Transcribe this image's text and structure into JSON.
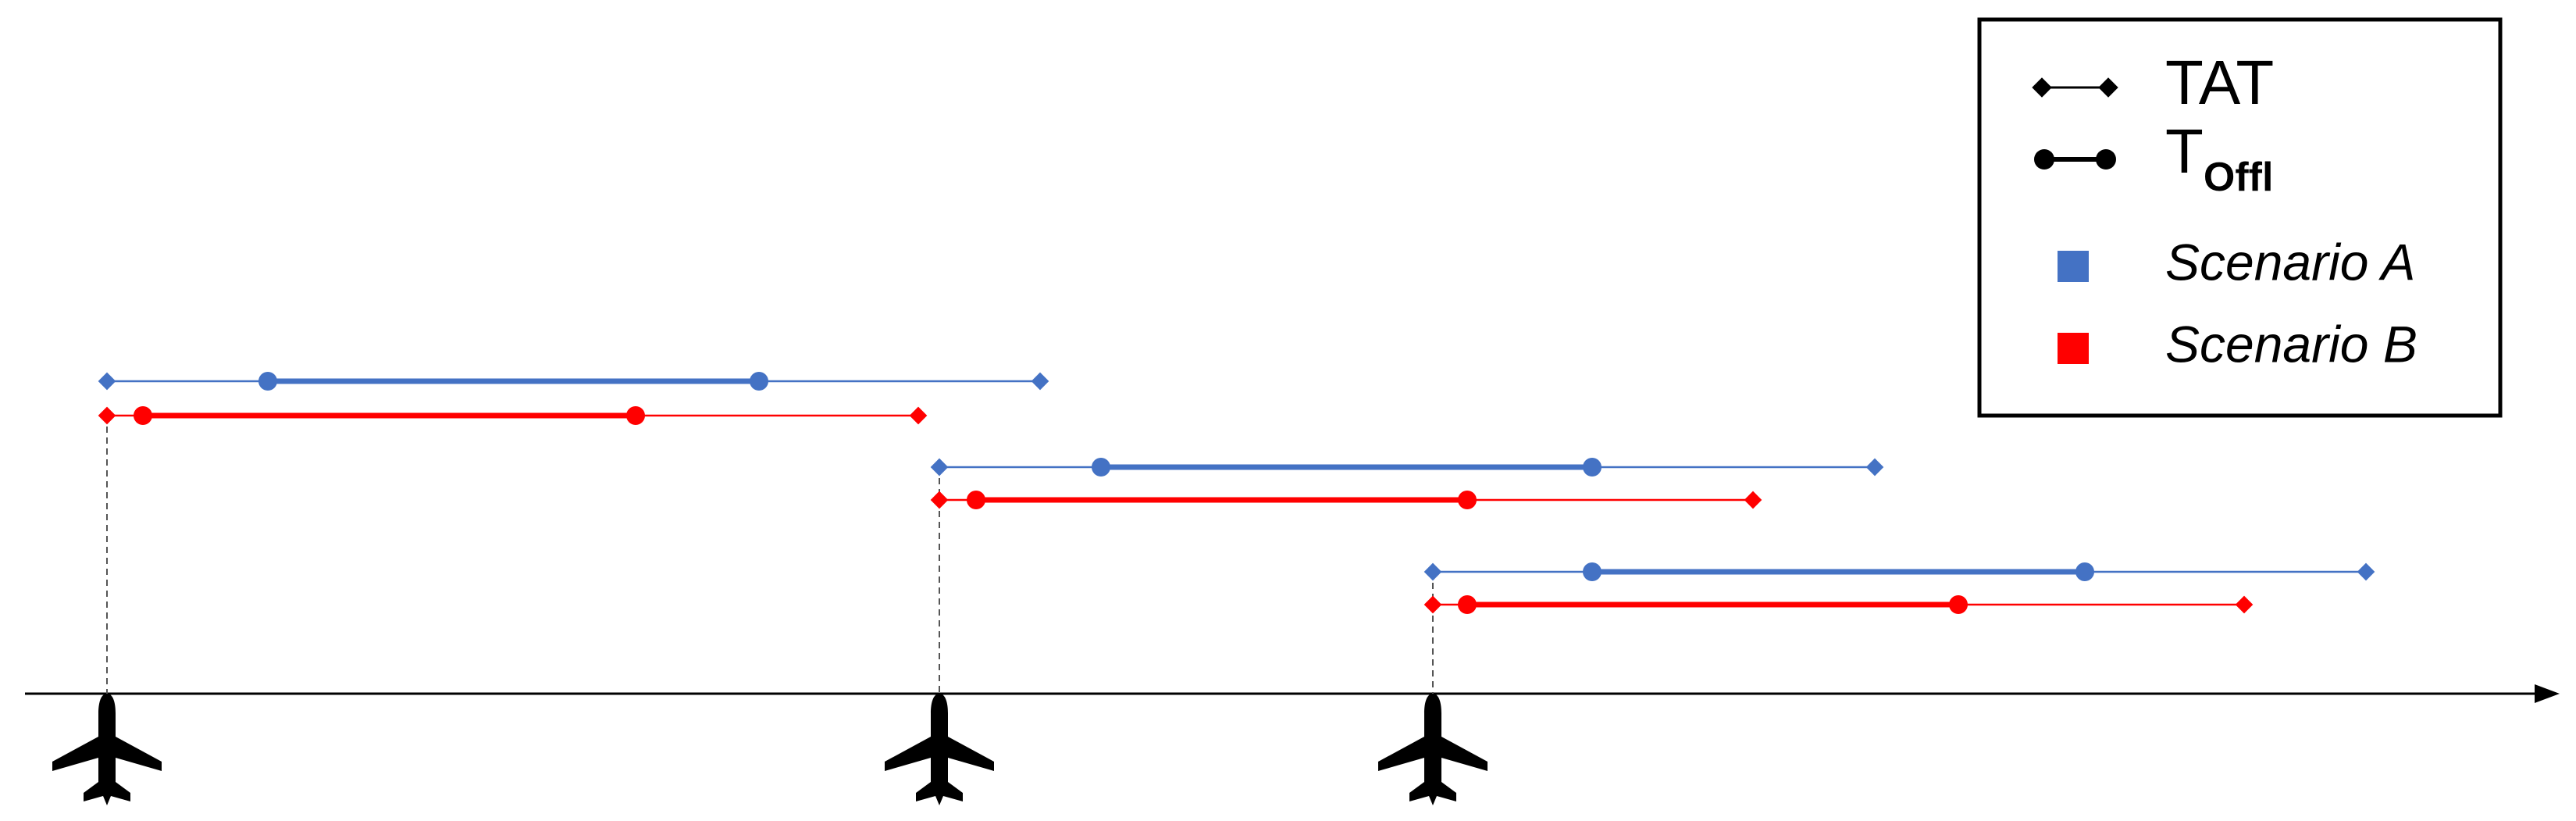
{
  "legend": {
    "items": [
      {
        "label": "TAT"
      },
      {
        "label": "T",
        "subscript": "Offl"
      },
      {
        "label": "Scenario A"
      },
      {
        "label": "Scenario B"
      }
    ]
  }
}
